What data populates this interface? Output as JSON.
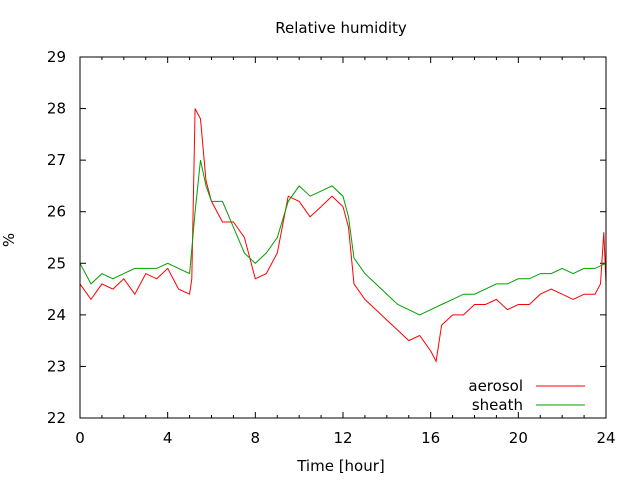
{
  "chart_data": {
    "type": "line",
    "title": "Relative humidity",
    "xlabel": "Time [hour]",
    "ylabel": "%",
    "xlim": [
      0,
      24
    ],
    "ylim": [
      22,
      29
    ],
    "x_ticks": [
      0,
      4,
      8,
      12,
      16,
      20,
      24
    ],
    "x_tick_labels": [
      "0",
      "4",
      "8",
      "12",
      "16",
      "20",
      "24"
    ],
    "y_ticks": [
      22,
      23,
      24,
      25,
      26,
      27,
      28,
      29
    ],
    "y_tick_labels": [
      "22",
      "23",
      "24",
      "25",
      "26",
      "27",
      "28",
      "29"
    ],
    "grid": false,
    "legend": "bottom-right",
    "series": [
      {
        "name": "aerosol",
        "color": "#ff0000",
        "x": [
          0,
          0.5,
          1,
          1.5,
          2,
          2.5,
          3,
          3.5,
          4,
          4.5,
          5,
          5.1,
          5.25,
          5.5,
          5.75,
          6,
          6.5,
          7,
          7.5,
          8,
          8.5,
          9,
          9.5,
          10,
          10.5,
          11,
          11.5,
          12,
          12.25,
          12.5,
          13,
          13.5,
          14,
          14.5,
          15,
          15.5,
          16,
          16.25,
          16.5,
          17,
          17.5,
          18,
          18.5,
          19,
          19.5,
          20,
          20.5,
          21,
          21.5,
          22,
          22.5,
          23,
          23.5,
          23.75,
          23.9,
          24
        ],
        "y": [
          24.6,
          24.3,
          24.6,
          24.5,
          24.7,
          24.4,
          24.8,
          24.7,
          24.9,
          24.5,
          24.4,
          24.7,
          28.0,
          27.8,
          26.6,
          26.2,
          25.8,
          25.8,
          25.5,
          24.7,
          24.8,
          25.2,
          26.3,
          26.2,
          25.9,
          26.1,
          26.3,
          26.1,
          25.7,
          24.6,
          24.3,
          24.1,
          23.9,
          23.7,
          23.5,
          23.6,
          23.3,
          23.1,
          23.8,
          24.0,
          24.0,
          24.2,
          24.2,
          24.3,
          24.1,
          24.2,
          24.2,
          24.4,
          24.5,
          24.4,
          24.3,
          24.4,
          24.4,
          24.6,
          25.6,
          24.6
        ],
        "label_text": "aerosol"
      },
      {
        "name": "sheath",
        "color": "#00a000",
        "x": [
          0,
          0.5,
          1,
          1.5,
          2,
          2.5,
          3,
          3.5,
          4,
          4.5,
          5,
          5.25,
          5.5,
          5.75,
          6,
          6.5,
          7,
          7.5,
          8,
          8.5,
          9,
          9.5,
          10,
          10.5,
          11,
          11.5,
          12,
          12.25,
          12.5,
          13,
          13.5,
          14,
          14.5,
          15,
          15.5,
          16,
          16.5,
          17,
          17.5,
          18,
          18.5,
          19,
          19.5,
          20,
          20.5,
          21,
          21.5,
          22,
          22.5,
          23,
          23.5,
          24
        ],
        "y": [
          25.0,
          24.6,
          24.8,
          24.7,
          24.8,
          24.9,
          24.9,
          24.9,
          25.0,
          24.9,
          24.8,
          26.0,
          27.0,
          26.5,
          26.2,
          26.2,
          25.7,
          25.2,
          25.0,
          25.2,
          25.5,
          26.2,
          26.5,
          26.3,
          26.4,
          26.5,
          26.3,
          25.9,
          25.1,
          24.8,
          24.6,
          24.4,
          24.2,
          24.1,
          24.0,
          24.1,
          24.2,
          24.3,
          24.4,
          24.4,
          24.5,
          24.6,
          24.6,
          24.7,
          24.7,
          24.8,
          24.8,
          24.9,
          24.8,
          24.9,
          24.9,
          25.0
        ]
      }
    ]
  }
}
